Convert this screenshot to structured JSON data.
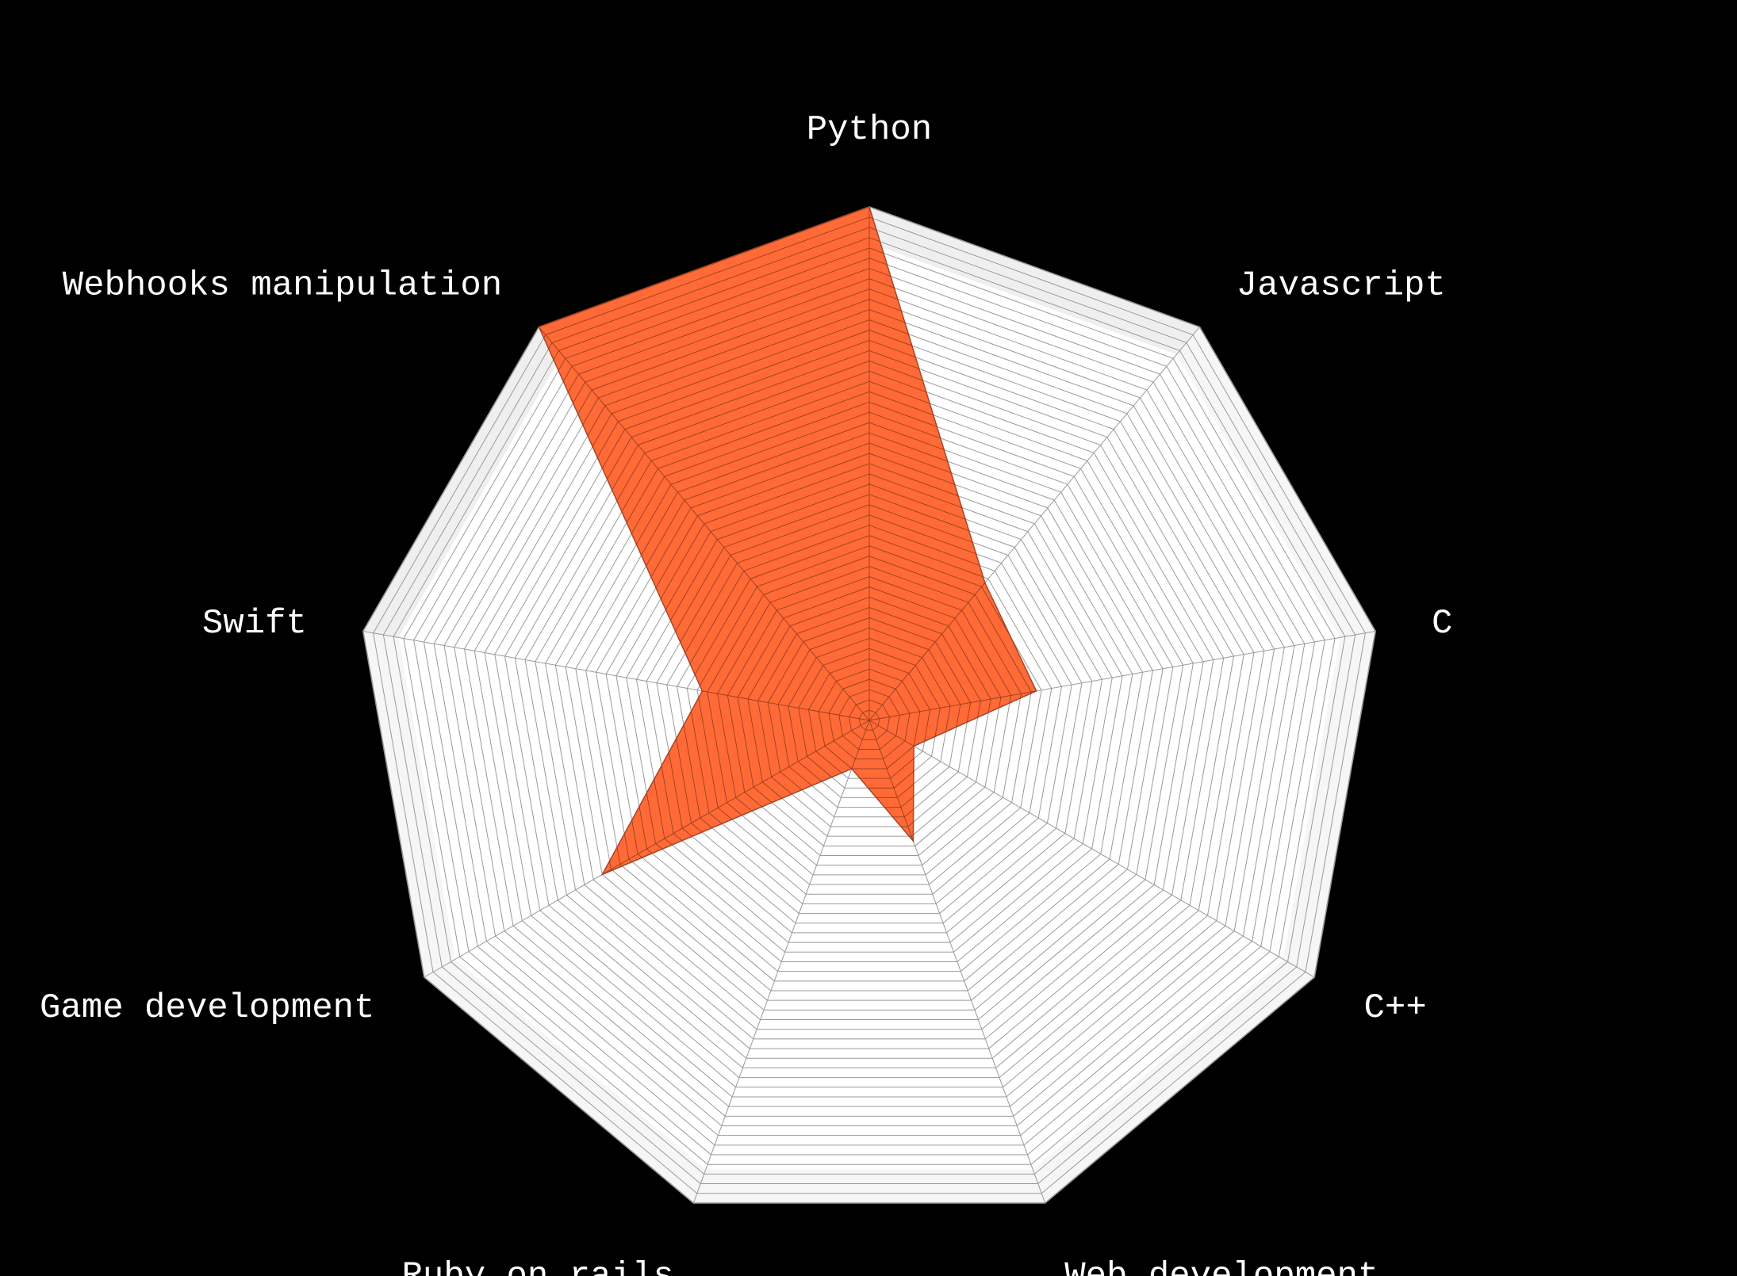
{
  "chart_data": {
    "type": "radar",
    "axes": [
      "Python",
      "Javascript",
      "C",
      "C++",
      "Web development",
      "Ruby on rails",
      "Game development",
      "Swift",
      "Webhooks manipulation"
    ],
    "values": [
      100,
      35,
      33,
      10,
      25,
      10,
      60,
      33,
      100
    ],
    "range": [
      0,
      100
    ],
    "grid_levels": 50,
    "colors": {
      "background": "#000000",
      "series_fill": "#ff6a37",
      "series_stroke": "#a84428",
      "grid_line": "#9a9a9a",
      "label_text": "#ffffff"
    }
  }
}
